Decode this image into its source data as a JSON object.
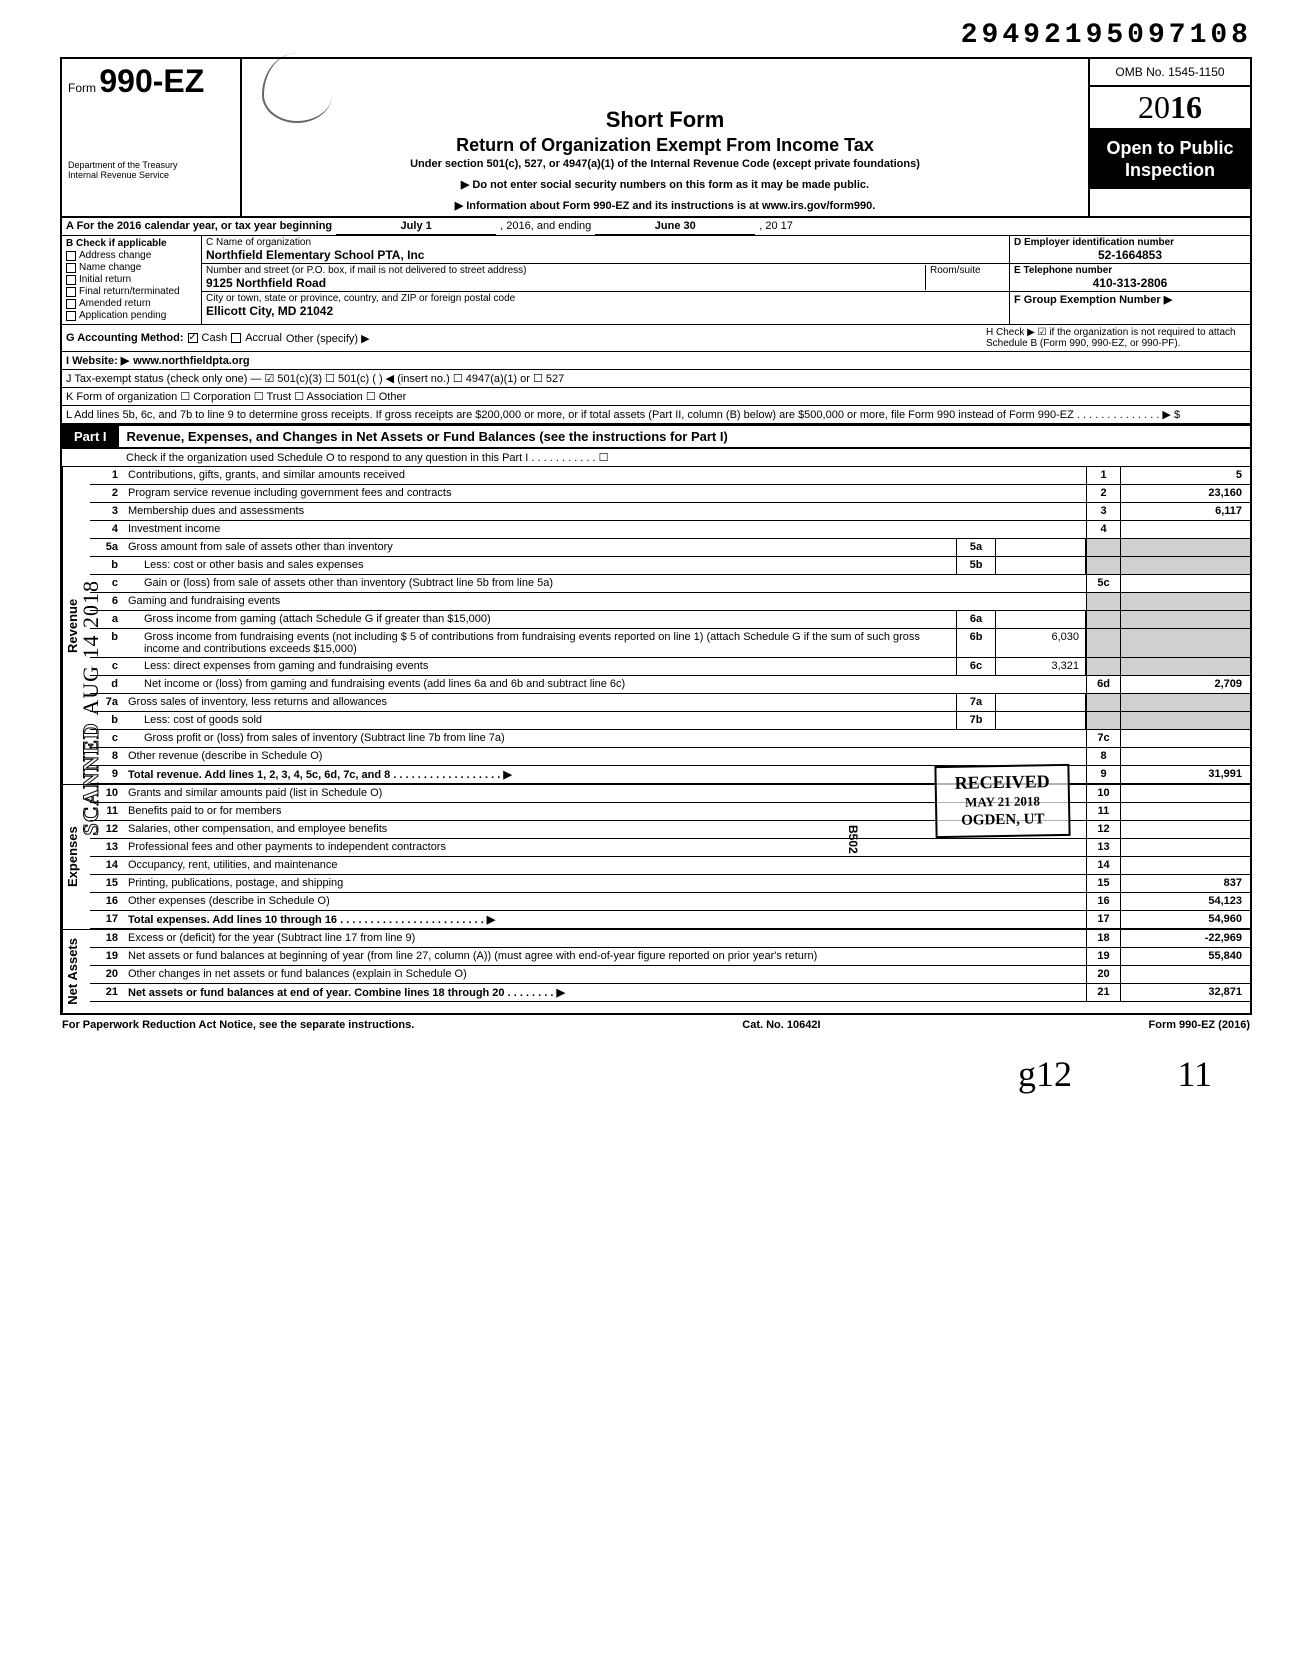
{
  "top_number": "29492195097108",
  "form": {
    "prefix": "Form",
    "number": "990-EZ",
    "dept": "Department of the Treasury",
    "irs": "Internal Revenue Service"
  },
  "title": {
    "short": "Short Form",
    "main": "Return of Organization Exempt From Income Tax",
    "sub": "Under section 501(c), 527, or 4947(a)(1) of the Internal Revenue Code (except private foundations)",
    "arrow1": "▶ Do not enter social security numbers on this form as it may be made public.",
    "arrow2": "▶ Information about Form 990-EZ and its instructions is at www.irs.gov/form990."
  },
  "right": {
    "omb": "OMB No. 1545-1150",
    "year_outline": "20",
    "year_bold": "16",
    "open": "Open to Public Inspection"
  },
  "row_a": {
    "label": "A For the 2016 calendar year, or tax year beginning",
    "begin": "July 1",
    "mid": ", 2016, and ending",
    "end": "June 30",
    "tail": ", 20   17"
  },
  "col_b": {
    "header": "B Check if applicable",
    "items": [
      "Address change",
      "Name change",
      "Initial return",
      "Final return/terminated",
      "Amended return",
      "Application pending"
    ]
  },
  "col_c": {
    "name_label": "C Name of organization",
    "name": "Northfield Elementary School PTA, Inc",
    "street_label": "Number and street (or P.O. box, if mail is not delivered to street address)",
    "room_label": "Room/suite",
    "street": "9125 Northfield Road",
    "city_label": "City or town, state or province, country, and ZIP or foreign postal code",
    "city": "Ellicott City, MD 21042"
  },
  "col_d": {
    "ein_label": "D Employer identification number",
    "ein": "52-1664853",
    "phone_label": "E Telephone number",
    "phone": "410-313-2806",
    "group_label": "F Group Exemption Number ▶"
  },
  "lines": {
    "g": "G Accounting Method:",
    "g_cash": "Cash",
    "g_accrual": "Accrual",
    "g_other": "Other (specify) ▶",
    "h": "H Check ▶ ☑ if the organization is not required to attach Schedule B (Form 990, 990-EZ, or 990-PF).",
    "i_label": "I  Website: ▶",
    "i_val": "www.northfieldpta.org",
    "j": "J Tax-exempt status (check only one) —  ☑ 501(c)(3)   ☐ 501(c) (      ) ◀ (insert no.) ☐ 4947(a)(1) or   ☐ 527",
    "k": "K Form of organization   ☐ Corporation   ☐ Trust   ☐ Association   ☐ Other",
    "l": "L Add lines 5b, 6c, and 7b to line 9 to determine gross receipts. If gross receipts are $200,000 or more, or if total assets (Part II, column (B) below) are $500,000 or more, file Form 990 instead of Form 990-EZ . . . . . . . . . . . . . . ▶   $"
  },
  "part1": {
    "tab": "Part I",
    "title": "Revenue, Expenses, and Changes in Net Assets or Fund Balances (see the instructions for Part I)",
    "check": "Check if the organization used Schedule O to respond to any question in this Part I . . . . . . . . . . . ☐"
  },
  "side": {
    "revenue": "Revenue",
    "expenses": "Expenses",
    "netassets": "Net Assets"
  },
  "rows": [
    {
      "n": "1",
      "d": "Contributions, gifts, grants, and similar amounts received",
      "k": "1",
      "v": "5"
    },
    {
      "n": "2",
      "d": "Program service revenue including government fees and contracts",
      "k": "2",
      "v": "23,160"
    },
    {
      "n": "3",
      "d": "Membership dues and assessments",
      "k": "3",
      "v": "6,117"
    },
    {
      "n": "4",
      "d": "Investment income",
      "k": "4",
      "v": ""
    },
    {
      "n": "5a",
      "d": "Gross amount from sale of assets other than inventory",
      "mk": "5a",
      "mv": ""
    },
    {
      "n": "b",
      "d": "Less: cost or other basis and sales expenses",
      "mk": "5b",
      "mv": ""
    },
    {
      "n": "c",
      "d": "Gain or (loss) from sale of assets other than inventory (Subtract line 5b from line 5a)",
      "k": "5c",
      "v": ""
    },
    {
      "n": "6",
      "d": "Gaming and fundraising events"
    },
    {
      "n": "a",
      "d": "Gross income from gaming (attach Schedule G if greater than $15,000)",
      "mk": "6a",
      "mv": ""
    },
    {
      "n": "b",
      "d": "Gross income from fundraising events (not including  $                       5 of contributions from fundraising events reported on line 1) (attach Schedule G if the sum of such gross income and contributions exceeds $15,000)",
      "mk": "6b",
      "mv": "6,030"
    },
    {
      "n": "c",
      "d": "Less: direct expenses from gaming and fundraising events",
      "mk": "6c",
      "mv": "3,321"
    },
    {
      "n": "d",
      "d": "Net income or (loss) from gaming and fundraising events (add lines 6a and 6b and subtract line 6c)",
      "k": "6d",
      "v": "2,709"
    },
    {
      "n": "7a",
      "d": "Gross sales of inventory, less returns and allowances",
      "mk": "7a",
      "mv": ""
    },
    {
      "n": "b",
      "d": "Less: cost of goods sold",
      "mk": "7b",
      "mv": ""
    },
    {
      "n": "c",
      "d": "Gross profit or (loss) from sales of inventory (Subtract line 7b from line 7a)",
      "k": "7c",
      "v": ""
    },
    {
      "n": "8",
      "d": "Other revenue (describe in Schedule O)",
      "k": "8",
      "v": ""
    },
    {
      "n": "9",
      "d": "Total revenue. Add lines 1, 2, 3, 4, 5c, 6d, 7c, and 8   . . . . . . . . . . . . . . . . . . ▶",
      "k": "9",
      "v": "31,991",
      "bold": true
    }
  ],
  "exp_rows": [
    {
      "n": "10",
      "d": "Grants and similar amounts paid (list in Schedule O)",
      "k": "10",
      "v": ""
    },
    {
      "n": "11",
      "d": "Benefits paid to or for members",
      "k": "11",
      "v": ""
    },
    {
      "n": "12",
      "d": "Salaries, other compensation, and employee benefits",
      "k": "12",
      "v": ""
    },
    {
      "n": "13",
      "d": "Professional fees and other payments to independent contractors",
      "k": "13",
      "v": ""
    },
    {
      "n": "14",
      "d": "Occupancy, rent, utilities, and maintenance",
      "k": "14",
      "v": ""
    },
    {
      "n": "15",
      "d": "Printing, publications, postage, and shipping",
      "k": "15",
      "v": "837"
    },
    {
      "n": "16",
      "d": "Other expenses (describe in Schedule O)",
      "k": "16",
      "v": "54,123"
    },
    {
      "n": "17",
      "d": "Total expenses. Add lines 10 through 16  . . . . . . . . . . . . . . . . . . . . . . . . ▶",
      "k": "17",
      "v": "54,960",
      "bold": true
    }
  ],
  "net_rows": [
    {
      "n": "18",
      "d": "Excess or (deficit) for the year (Subtract line 17 from line 9)",
      "k": "18",
      "v": "-22,969"
    },
    {
      "n": "19",
      "d": "Net assets or fund balances at beginning of year (from line 27, column (A)) (must agree with end-of-year figure reported on prior year's return)",
      "k": "19",
      "v": "55,840"
    },
    {
      "n": "20",
      "d": "Other changes in net assets or fund balances (explain in Schedule O)",
      "k": "20",
      "v": ""
    },
    {
      "n": "21",
      "d": "Net assets or fund balances at end of year. Combine lines 18 through 20  . . . . . . . . ▶",
      "k": "21",
      "v": "32,871",
      "bold": true
    }
  ],
  "footer": {
    "left": "For Paperwork Reduction Act Notice, see the separate instructions.",
    "mid": "Cat. No. 10642I",
    "right": "Form 990-EZ (2016)"
  },
  "stamps": {
    "received": "RECEIVED",
    "received_date": "MAY 21 2018",
    "ogden": "OGDEN, UT",
    "scanned": "SCANNED",
    "scanned_date": "AUG 14 2018",
    "hand1": "g12",
    "hand2": "11",
    "b502": "B502"
  }
}
